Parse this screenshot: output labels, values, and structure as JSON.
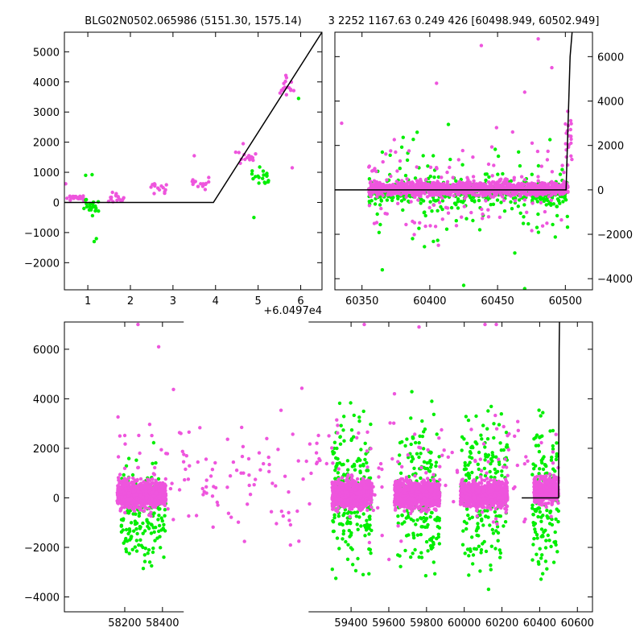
{
  "header": {
    "left_title": "BLG02N0502.065986 (5151.30, 1575.14)",
    "right_title": "3 2252 1167.63 0.249 426 [60498.949, 60502.949]"
  },
  "colors": {
    "series_a": "#ee55dd",
    "series_b": "#00ee00",
    "model": "#000000"
  },
  "chart_data": [
    {
      "id": "top-left",
      "type": "scatter",
      "xlim": [
        0.45,
        6.5
      ],
      "ylim": [
        -2900,
        5650
      ],
      "xticks": [
        1,
        2,
        3,
        4,
        5,
        6
      ],
      "yticks": [
        -2000,
        -1000,
        0,
        1000,
        2000,
        3000,
        4000,
        5000
      ],
      "xtick_labels": [
        "1",
        "2",
        "3",
        "4",
        "5",
        "6"
      ],
      "ytick_labels": [
        "−2000",
        "−1000",
        "0",
        "1000",
        "2000",
        "3000",
        "4000",
        "5000"
      ],
      "x_offset_label": "+6.0497e4",
      "yaxis_side": "left",
      "model_line": [
        [
          0.45,
          0
        ],
        [
          3.95,
          0
        ],
        [
          6.5,
          5650
        ]
      ],
      "series": [
        {
          "color": "#ee55dd",
          "clusters": [
            {
              "x": [
                0.45,
                1.0
              ],
              "y": [
                0,
                300
              ],
              "n": 22
            },
            {
              "x": [
                1.45,
                1.85
              ],
              "y": [
                -100,
                400
              ],
              "n": 16
            },
            {
              "x": [
                2.45,
                2.85
              ],
              "y": [
                150,
                750
              ],
              "n": 14
            },
            {
              "x": [
                3.45,
                3.85
              ],
              "y": [
                350,
                900
              ],
              "n": 14
            },
            {
              "x": [
                4.45,
                4.95
              ],
              "y": [
                1200,
                1950
              ],
              "n": 16
            },
            {
              "x": [
                5.5,
                5.85
              ],
              "y": [
                3200,
                4400
              ],
              "n": 16
            }
          ],
          "points": [
            [
              3.5,
              1550
            ],
            [
              5.8,
              1150
            ],
            [
              0.48,
              620
            ],
            [
              4.65,
              1950
            ]
          ]
        },
        {
          "color": "#00ee00",
          "clusters": [
            {
              "x": [
                0.9,
                1.25
              ],
              "y": [
                -600,
                350
              ],
              "n": 20
            },
            {
              "x": [
                4.85,
                5.25
              ],
              "y": [
                300,
                1300
              ],
              "n": 20
            }
          ],
          "points": [
            [
              1.15,
              -1300
            ],
            [
              1.2,
              -1200
            ],
            [
              0.95,
              900
            ],
            [
              1.1,
              920
            ],
            [
              4.9,
              -500
            ],
            [
              5.95,
              3450
            ]
          ]
        }
      ]
    },
    {
      "id": "top-right",
      "type": "scatter",
      "xlim": [
        60330,
        60520
      ],
      "ylim": [
        -4500,
        7100
      ],
      "xticks": [
        60350,
        60400,
        60450,
        60500
      ],
      "yticks": [
        -4000,
        -2000,
        0,
        2000,
        4000,
        6000
      ],
      "xtick_labels": [
        "60350",
        "60400",
        "60450",
        "60500"
      ],
      "ytick_labels": [
        "−4000",
        "−2000",
        "0",
        "2000",
        "4000",
        "6000"
      ],
      "yaxis_side": "right",
      "model_line": [
        [
          60330,
          0
        ],
        [
          60500.5,
          0
        ],
        [
          60503.5,
          6000
        ],
        [
          60505,
          7100
        ]
      ],
      "series": [
        {
          "color": "#00ee00",
          "clusters": [
            {
              "x": [
                60355,
                60502
              ],
              "y": [
                -900,
                700
              ],
              "n": 420
            },
            {
              "x": [
                60355,
                60502
              ],
              "y": [
                -3800,
                3700
              ],
              "n": 130
            }
          ],
          "points": [
            [
              60470,
              -4450
            ],
            [
              60425,
              -4300
            ],
            [
              60365,
              -3600
            ]
          ]
        },
        {
          "color": "#ee55dd",
          "clusters": [
            {
              "x": [
                60355,
                60502
              ],
              "y": [
                -400,
                500
              ],
              "n": 1300
            },
            {
              "x": [
                60355,
                60502
              ],
              "y": [
                -3000,
                3200
              ],
              "n": 140
            },
            {
              "x": [
                60500,
                60505
              ],
              "y": [
                500,
                4300
              ],
              "n": 20
            }
          ],
          "points": [
            [
              60438,
              6500
            ],
            [
              60480,
              6800
            ],
            [
              60490,
              5500
            ],
            [
              60405,
              4800
            ],
            [
              60470,
              4400
            ],
            [
              60335,
              3000
            ]
          ]
        }
      ]
    },
    {
      "id": "bottom",
      "type": "scatter",
      "xlim": [
        57880,
        60680
      ],
      "ylim": [
        -4600,
        7100
      ],
      "xticks": [
        58200,
        58400,
        59400,
        59600,
        59800,
        60000,
        60200,
        60400,
        60600
      ],
      "yticks": [
        -4000,
        -2000,
        0,
        2000,
        4000,
        6000
      ],
      "xtick_labels": [
        "58200",
        "58400",
        "59400",
        "59600",
        "59800",
        "60000",
        "60200",
        "60400",
        "60600"
      ],
      "ytick_labels": [
        "−4000",
        "−2000",
        "0",
        "2000",
        "4000",
        "6000"
      ],
      "yaxis_side": "left",
      "axis_break_after": 58470,
      "axis_resume_at": 59260,
      "model_line": [
        [
          60305,
          0
        ],
        [
          60500.5,
          0
        ],
        [
          60503.5,
          6000
        ],
        [
          60505,
          7100
        ]
      ],
      "series": [
        {
          "color": "#00ee00",
          "clusters": [
            {
              "x": [
                58180,
                58420
              ],
              "y": [
                -3800,
                2500
              ],
              "n": 170
            },
            {
              "x": [
                59300,
                59510
              ],
              "y": [
                -4500,
                4800
              ],
              "n": 230
            },
            {
              "x": [
                59640,
                59870
              ],
              "y": [
                -4200,
                4500
              ],
              "n": 220
            },
            {
              "x": [
                59980,
                60230
              ],
              "y": [
                -4400,
                5000
              ],
              "n": 220
            },
            {
              "x": [
                60360,
                60500
              ],
              "y": [
                -4500,
                4500
              ],
              "n": 150
            }
          ],
          "points": []
        },
        {
          "color": "#ee55dd",
          "clusters": [
            {
              "x": [
                58160,
                58420
              ],
              "y": [
                -700,
                1000
              ],
              "n": 850
            },
            {
              "x": [
                59300,
                59510
              ],
              "y": [
                -700,
                1000
              ],
              "n": 850
            },
            {
              "x": [
                59630,
                59870
              ],
              "y": [
                -700,
                1000
              ],
              "n": 850
            },
            {
              "x": [
                59980,
                60230
              ],
              "y": [
                -700,
                1000
              ],
              "n": 850
            },
            {
              "x": [
                60370,
                60500
              ],
              "y": [
                -500,
                1100
              ],
              "n": 420
            },
            {
              "x": [
                58160,
                60500
              ],
              "y": [
                -3000,
                5000
              ],
              "n": 240
            }
          ],
          "points": [
            [
              58270,
              7000
            ],
            [
              59470,
              7000
            ],
            [
              59760,
              6900
            ],
            [
              60110,
              7000
            ],
            [
              60170,
              7000
            ],
            [
              58380,
              6100
            ],
            [
              59630,
              4200
            ]
          ]
        }
      ]
    }
  ]
}
